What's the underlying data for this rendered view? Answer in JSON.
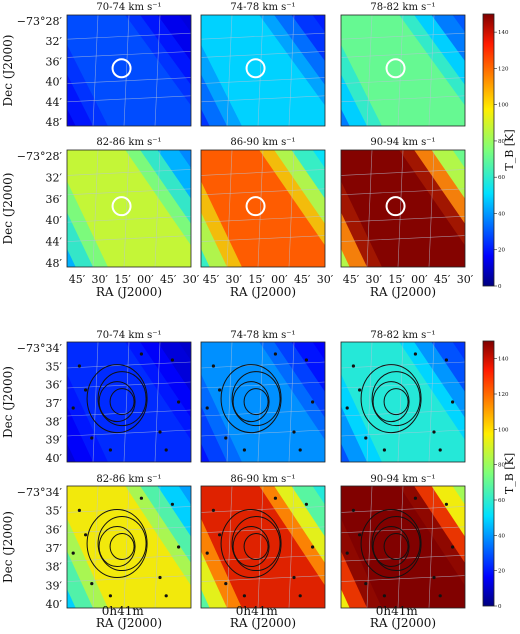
{
  "chart_data": [
    {
      "type": "heatmap",
      "panels": [
        "70-74 km s⁻¹",
        "74-78 km s⁻¹",
        "78-82 km s⁻¹",
        "82-86 km s⁻¹",
        "86-90 km s⁻¹",
        "90-94 km s⁻¹"
      ],
      "panel_mean_tb": [
        22,
        38,
        55,
        68,
        95,
        130
      ],
      "ylabel": "Dec (J2000)",
      "xlabel": "RA (J2000)",
      "yticks": [
        "−73°28′",
        "32′",
        "36′",
        "40′",
        "44′",
        "48′"
      ],
      "xticks": [
        "45′",
        "30′",
        "15′",
        "00′",
        "45′",
        "30′"
      ],
      "colorbar": {
        "label": "T_B [K]",
        "ticks": [
          "140",
          "120",
          "100",
          "80",
          "60",
          "40",
          "20",
          "0"
        ],
        "range": [
          0,
          150
        ]
      }
    },
    {
      "type": "heatmap",
      "panels": [
        "70-74 km s⁻¹",
        "74-78 km s⁻¹",
        "78-82 km s⁻¹",
        "82-86 km s⁻¹",
        "86-90 km s⁻¹",
        "90-94 km s⁻¹"
      ],
      "panel_mean_tb": [
        18,
        30,
        45,
        75,
        105,
        148
      ],
      "ylabel": "Dec (J2000)",
      "xlabel": "RA (J2000)",
      "yticks": [
        "−73°34′",
        "35′",
        "36′",
        "37′",
        "38′",
        "39′",
        "40′"
      ],
      "xtick": "0h41m",
      "colorbar": {
        "label": "T_B [K]",
        "ticks": [
          "140",
          "120",
          "100",
          "80",
          "60",
          "40",
          "20",
          "0"
        ],
        "range": [
          0,
          150
        ]
      }
    }
  ]
}
